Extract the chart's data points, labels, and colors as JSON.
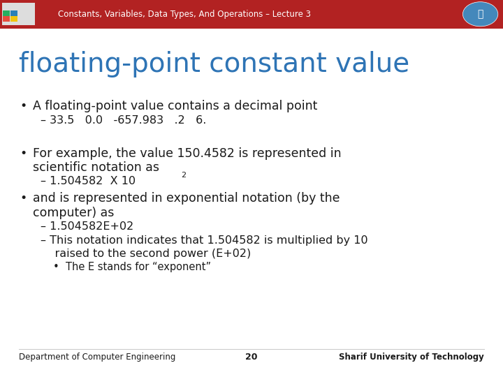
{
  "header_bg": "#B22222",
  "header_text": "Constants, Variables, Data Types, And Operations – Lecture 3",
  "header_text_color": "#FFFFFF",
  "slide_bg": "#FFFFFF",
  "title": "floating-point constant value",
  "title_color": "#2E74B5",
  "text_color": "#1A1A1A",
  "bullet1": "A floating-point value contains a decimal point",
  "bullet1_sub": "– 33.5   0.0   -657.983   .2   6.",
  "bullet2_line1": "For example, the value 150.4582 is represented in",
  "bullet2_line2": "scientific notation as",
  "bullet2_sub_main": "– 1.504582  X 10",
  "bullet2_sup": "2",
  "bullet3_line1": "and is represented in exponential notation (by the",
  "bullet3_line2": "computer) as",
  "bullet3_sub1": "– 1.504582E+02",
  "bullet3_sub2_line1": "– This notation indicates that 1.504582 is multiplied by 10",
  "bullet3_sub2_line2": "    raised to the second power (E+02)",
  "bullet3_sub3": "•  The E stands for “exponent”",
  "footer_left": "Department of Computer Engineering",
  "footer_center": "20",
  "footer_right": "Sharif University of Technology"
}
